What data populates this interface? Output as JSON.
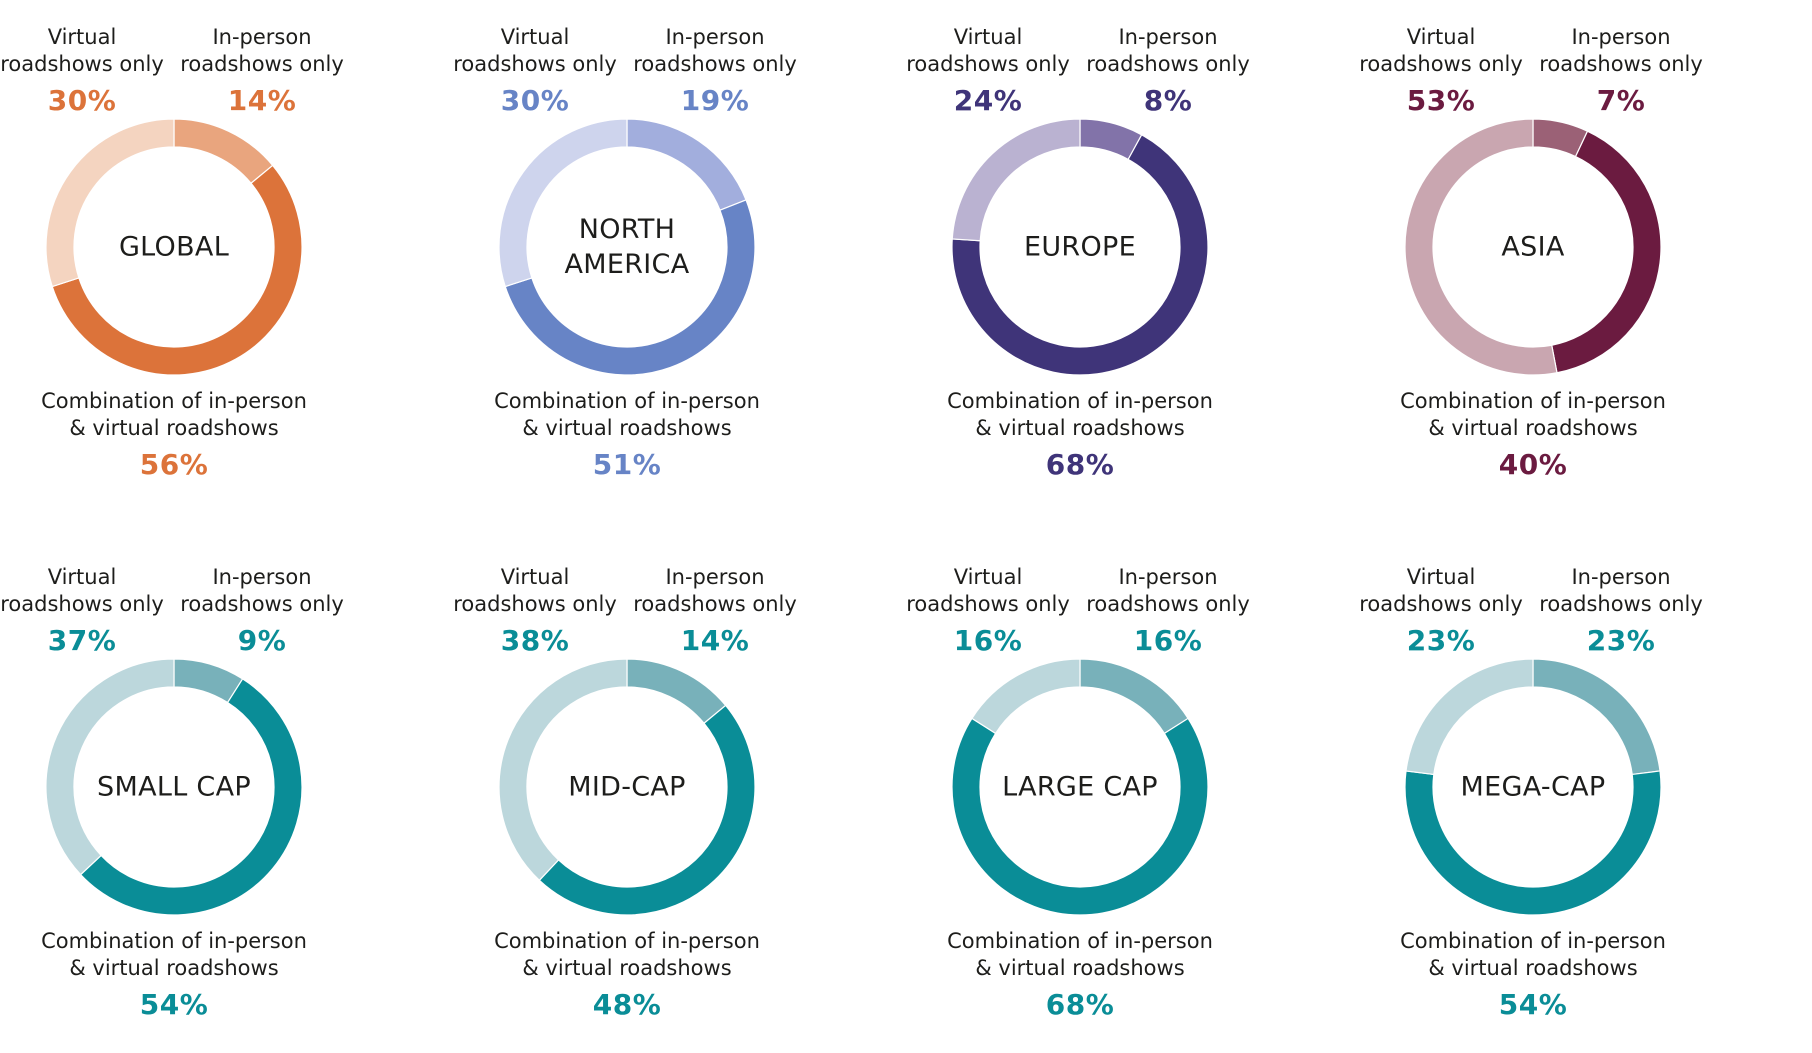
{
  "labels": {
    "virtual": "Virtual\nroadshows only",
    "in_person": "In-person\nroadshows only",
    "combination": "Combination of in-person\n& virtual roadshows"
  },
  "chart_data": [
    {
      "type": "pie",
      "title": "GLOBAL",
      "categories": [
        "In-person roadshows only",
        "Combination of in-person & virtual roadshows",
        "Virtual roadshows only"
      ],
      "values": [
        14,
        56,
        30
      ],
      "value_labels": [
        "14%",
        "56%",
        "30%"
      ],
      "colors": [
        "#e9a57e",
        "#dc733a",
        "#f4d4c0"
      ],
      "label_color": "#dc733a"
    },
    {
      "type": "pie",
      "title": "NORTH\nAMERICA",
      "categories": [
        "In-person roadshows only",
        "Combination of in-person & virtual roadshows",
        "Virtual roadshows only"
      ],
      "values": [
        19,
        51,
        30
      ],
      "value_labels": [
        "19%",
        "51%",
        "30%"
      ],
      "colors": [
        "#a2aedd",
        "#6784c6",
        "#ced4ed"
      ],
      "label_color": "#6784c6"
    },
    {
      "type": "pie",
      "title": "EUROPE",
      "categories": [
        "In-person roadshows only",
        "Combination of in-person & virtual roadshows",
        "Virtual roadshows only"
      ],
      "values": [
        8,
        68,
        24
      ],
      "value_labels": [
        "8%",
        "68%",
        "24%"
      ],
      "colors": [
        "#8273a9",
        "#3f3479",
        "#bab2d1"
      ],
      "label_color": "#3f3479"
    },
    {
      "type": "pie",
      "title": "ASIA",
      "categories": [
        "In-person roadshows only",
        "Combination of in-person & virtual roadshows",
        "Virtual roadshows only"
      ],
      "values": [
        7,
        40,
        53
      ],
      "value_labels": [
        "7%",
        "40%",
        "53%"
      ],
      "colors": [
        "#9b6176",
        "#6b1b40",
        "#c9a6b0"
      ],
      "label_color": "#6b1b40"
    },
    {
      "type": "pie",
      "title": "SMALL CAP",
      "categories": [
        "In-person roadshows only",
        "Combination of in-person & virtual roadshows",
        "Virtual roadshows only"
      ],
      "values": [
        9,
        54,
        37
      ],
      "value_labels": [
        "9%",
        "54%",
        "37%"
      ],
      "colors": [
        "#78b1ba",
        "#0a8d97",
        "#bcd7dc"
      ],
      "label_color": "#0a8d97"
    },
    {
      "type": "pie",
      "title": "MID-CAP",
      "categories": [
        "In-person roadshows only",
        "Combination of in-person & virtual roadshows",
        "Virtual roadshows only"
      ],
      "values": [
        14,
        48,
        38
      ],
      "value_labels": [
        "14%",
        "48%",
        "38%"
      ],
      "colors": [
        "#78b1ba",
        "#0a8d97",
        "#bcd7dc"
      ],
      "label_color": "#0a8d97"
    },
    {
      "type": "pie",
      "title": "LARGE CAP",
      "categories": [
        "In-person roadshows only",
        "Combination of in-person & virtual roadshows",
        "Virtual roadshows only"
      ],
      "values": [
        16,
        68,
        16
      ],
      "value_labels": [
        "16%",
        "68%",
        "16%"
      ],
      "colors": [
        "#78b1ba",
        "#0a8d97",
        "#bcd7dc"
      ],
      "label_color": "#0a8d97"
    },
    {
      "type": "pie",
      "title": "MEGA-CAP",
      "categories": [
        "In-person roadshows only",
        "Combination of in-person & virtual roadshows",
        "Virtual roadshows only"
      ],
      "values": [
        23,
        54,
        23
      ],
      "value_labels": [
        "23%",
        "54%",
        "23%"
      ],
      "colors": [
        "#78b1ba",
        "#0a8d97",
        "#bcd7dc"
      ],
      "label_color": "#0a8d97"
    }
  ]
}
